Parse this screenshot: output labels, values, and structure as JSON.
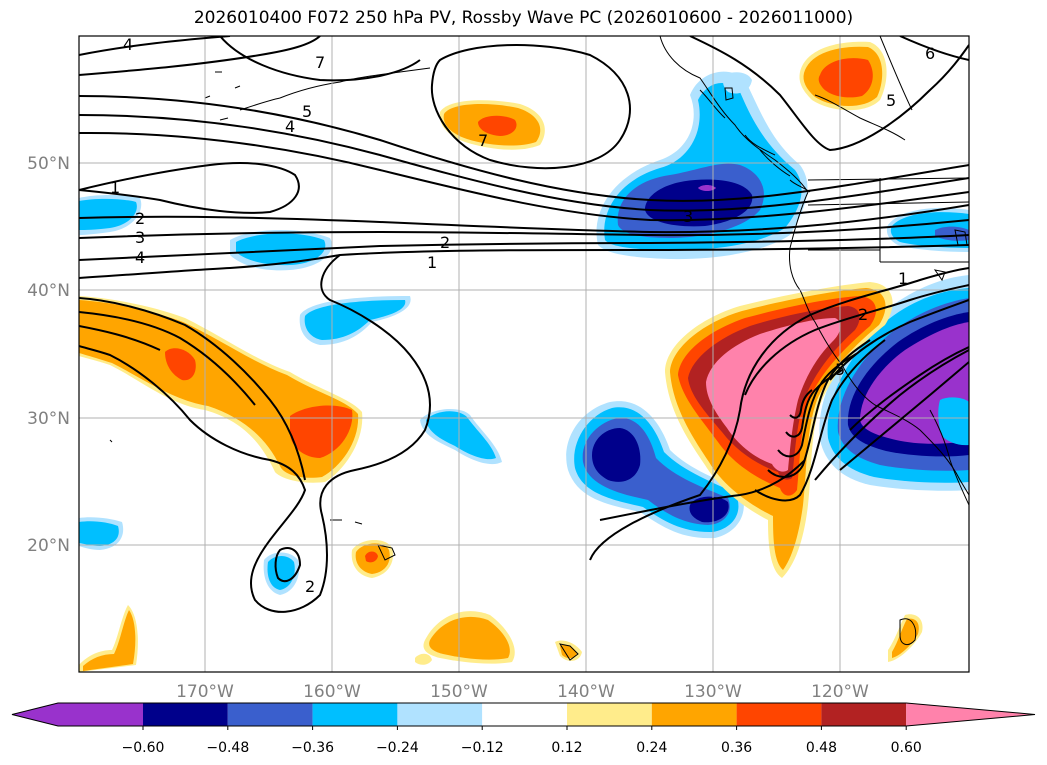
{
  "title": "2026010400 F072 250 hPa PV, Rossby Wave PC (2026010600 - 2026011000)",
  "lat_labels": [
    "50°N",
    "40°N",
    "30°N",
    "20°N"
  ],
  "lon_labels": [
    "170°W",
    "160°W",
    "150°W",
    "140°W",
    "130°W",
    "120°W"
  ],
  "colorbar": {
    "labels": [
      "−0.60",
      "−0.48",
      "−0.36",
      "−0.24",
      "−0.12",
      "0.12",
      "0.24",
      "0.36",
      "0.48",
      "0.60"
    ],
    "colors": [
      "#9932cc",
      "#00008b",
      "#3a5fcd",
      "#00bfff",
      "#b0e2ff",
      "#ffffff",
      "#ffec8b",
      "#ffa500",
      "#ff4500",
      "#b22222",
      "#ff82ab"
    ]
  },
  "contour_labels": [
    "4",
    "7",
    "5",
    "4",
    "1",
    "2",
    "3",
    "4",
    "2",
    "1",
    "7",
    "5",
    "6",
    "3",
    "1",
    "2",
    "5",
    "2"
  ],
  "colors": {
    "contour": "#000000",
    "coast": "#000000",
    "grid": "#b0b0b0"
  }
}
